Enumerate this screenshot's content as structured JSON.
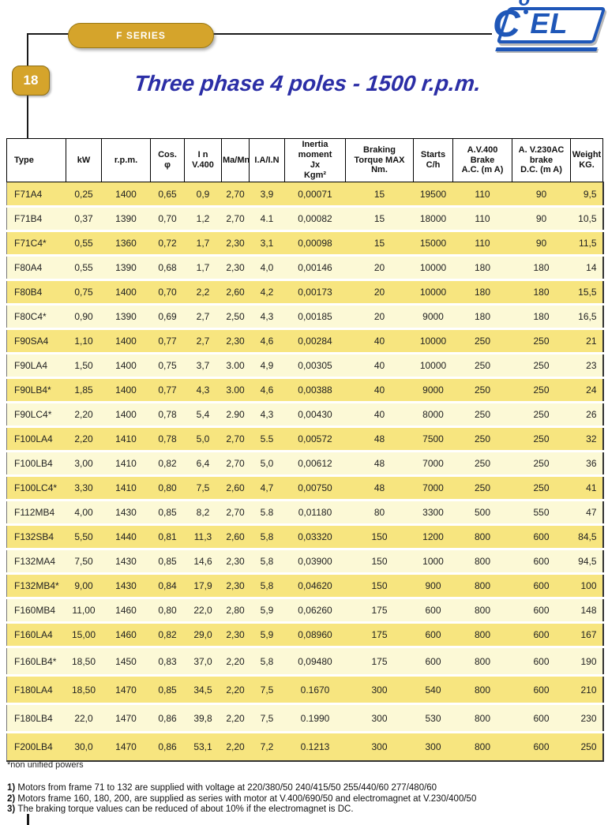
{
  "header": {
    "series_label": "F SERIES",
    "page_number": "18",
    "title": "Three phase 4 poles - 1500 r.p.m.",
    "logo": {
      "c": "C",
      "o": "o",
      "el": "EL"
    }
  },
  "colors": {
    "gold": "#d5a42b",
    "logo_blue": "#1f57b8",
    "title_blue": "#2b2ea6",
    "row_dark_yellow": "#f7e57f",
    "row_pale_yellow": "#fcf9d6"
  },
  "table": {
    "headers": [
      [
        "Type"
      ],
      [
        "kW"
      ],
      [
        "r.p.m."
      ],
      [
        "Cos.",
        "φ"
      ],
      [
        "I n",
        "V.400"
      ],
      [
        "Ma/Mn"
      ],
      [
        "I.A/I.N"
      ],
      [
        "Inertia",
        "moment",
        "Jx",
        "Kgm²"
      ],
      [
        "Braking",
        "Torque MAX",
        "Nm."
      ],
      [
        "Starts",
        "C/h"
      ],
      [
        "A.V.400",
        "Brake",
        "A.C. (m A)"
      ],
      [
        "A. V.230AC",
        "brake",
        "D.C. (m A)"
      ],
      [
        "Weight",
        "KG."
      ]
    ],
    "rows": [
      [
        "F71A4",
        "0,25",
        "1400",
        "0,65",
        "0,9",
        "2,70",
        "3,9",
        "0,00071",
        "15",
        "19500",
        "110",
        "90",
        "9,5"
      ],
      [
        "F71B4",
        "0,37",
        "1390",
        "0,70",
        "1,2",
        "2,70",
        "4.1",
        "0,00082",
        "15",
        "18000",
        "110",
        "90",
        "10,5"
      ],
      [
        "F71C4*",
        "0,55",
        "1360",
        "0,72",
        "1,7",
        "2,30",
        "3,1",
        "0,00098",
        "15",
        "15000",
        "110",
        "90",
        "11,5"
      ],
      [
        "F80A4",
        "0,55",
        "1390",
        "0,68",
        "1,7",
        "2,30",
        "4,0",
        "0,00146",
        "20",
        "10000",
        "180",
        "180",
        "14"
      ],
      [
        "F80B4",
        "0,75",
        "1400",
        "0,70",
        "2,2",
        "2,60",
        "4,2",
        "0,00173",
        "20",
        "10000",
        "180",
        "180",
        "15,5"
      ],
      [
        "F80C4*",
        "0,90",
        "1390",
        "0,69",
        "2,7",
        "2,50",
        "4,3",
        "0,00185",
        "20",
        "9000",
        "180",
        "180",
        "16,5"
      ],
      [
        "F90SA4",
        "1,10",
        "1400",
        "0,77",
        "2,7",
        "2,30",
        "4,6",
        "0,00284",
        "40",
        "10000",
        "250",
        "250",
        "21"
      ],
      [
        "F90LA4",
        "1,50",
        "1400",
        "0,75",
        "3,7",
        "3.00",
        "4,9",
        "0,00305",
        "40",
        "10000",
        "250",
        "250",
        "23"
      ],
      [
        "F90LB4*",
        "1,85",
        "1400",
        "0,77",
        "4,3",
        "3.00",
        "4,6",
        "0,00388",
        "40",
        "9000",
        "250",
        "250",
        "24"
      ],
      [
        "F90LC4*",
        "2,20",
        "1400",
        "0,78",
        "5,4",
        "2.90",
        "4,3",
        "0,00430",
        "40",
        "8000",
        "250",
        "250",
        "26"
      ],
      [
        "F100LA4",
        "2,20",
        "1410",
        "0,78",
        "5,0",
        "2,70",
        "5.5",
        "0,00572",
        "48",
        "7500",
        "250",
        "250",
        "32"
      ],
      [
        "F100LB4",
        "3,00",
        "1410",
        "0,82",
        "6,4",
        "2,70",
        "5,0",
        "0,00612",
        "48",
        "7000",
        "250",
        "250",
        "36"
      ],
      [
        "F100LC4*",
        "3,30",
        "1410",
        "0,80",
        "7,5",
        "2,60",
        "4,7",
        "0,00750",
        "48",
        "7000",
        "250",
        "250",
        "41"
      ],
      [
        "F112MB4",
        "4,00",
        "1430",
        "0,85",
        "8,2",
        "2,70",
        "5.8",
        "0,01180",
        "80",
        "3300",
        "500",
        "550",
        "47"
      ],
      [
        "F132SB4",
        "5,50",
        "1440",
        "0,81",
        "11,3",
        "2,60",
        "5,8",
        "0,03320",
        "150",
        "1200",
        "800",
        "600",
        "84,5"
      ],
      [
        "F132MA4",
        "7,50",
        "1430",
        "0,85",
        "14,6",
        "2,30",
        "5,8",
        "0,03900",
        "150",
        "1000",
        "800",
        "600",
        "94,5"
      ],
      [
        "F132MB4*",
        "9,00",
        "1430",
        "0,84",
        "17,9",
        "2,30",
        "5,8",
        "0,04620",
        "150",
        "900",
        "800",
        "600",
        "100"
      ],
      [
        "F160MB4",
        "11,00",
        "1460",
        "0,80",
        "22,0",
        "2,80",
        "5,9",
        "0,06260",
        "175",
        "600",
        "800",
        "600",
        "148"
      ],
      [
        "F160LA4",
        "15,00",
        "1460",
        "0,82",
        "29,0",
        "2,30",
        "5,9",
        "0,08960",
        "175",
        "600",
        "800",
        "600",
        "167"
      ],
      [
        "F160LB4*",
        "18,50",
        "1450",
        "0,83",
        "37,0",
        "2,20",
        "5,8",
        "0,09480",
        "175",
        "600",
        "800",
        "600",
        "190"
      ],
      [
        "F180LA4",
        "18,50",
        "1470",
        "0,85",
        "34,5",
        "2,20",
        "7,5",
        "0.1670",
        "300",
        "540",
        "800",
        "600",
        "210"
      ],
      [
        "F180LB4",
        "22,0",
        "1470",
        "0,86",
        "39,8",
        "2,20",
        "7,5",
        "0.1990",
        "300",
        "530",
        "800",
        "600",
        "230"
      ],
      [
        "F200LB4",
        "30,0",
        "1470",
        "0,86",
        "53,1",
        "2,20",
        "7,2",
        "0.1213",
        "300",
        "300",
        "800",
        "600",
        "250"
      ]
    ]
  },
  "footnotes": {
    "asterisk": "*non unified powers",
    "notes": [
      {
        "num": "1)",
        "text": "Motors from frame 71 to 132 are supplied with voltage at 220/380/50 240/415/50 255/440/60 277/480/60"
      },
      {
        "num": "2)",
        "text": "Motors frame 160, 180, 200, are supplied as series with motor at V.400/690/50 and electromagnet at V.230/400/50"
      },
      {
        "num": "3)",
        "text": "The braking torque values can be reduced of about 10% if the electromagnet is DC."
      }
    ]
  }
}
